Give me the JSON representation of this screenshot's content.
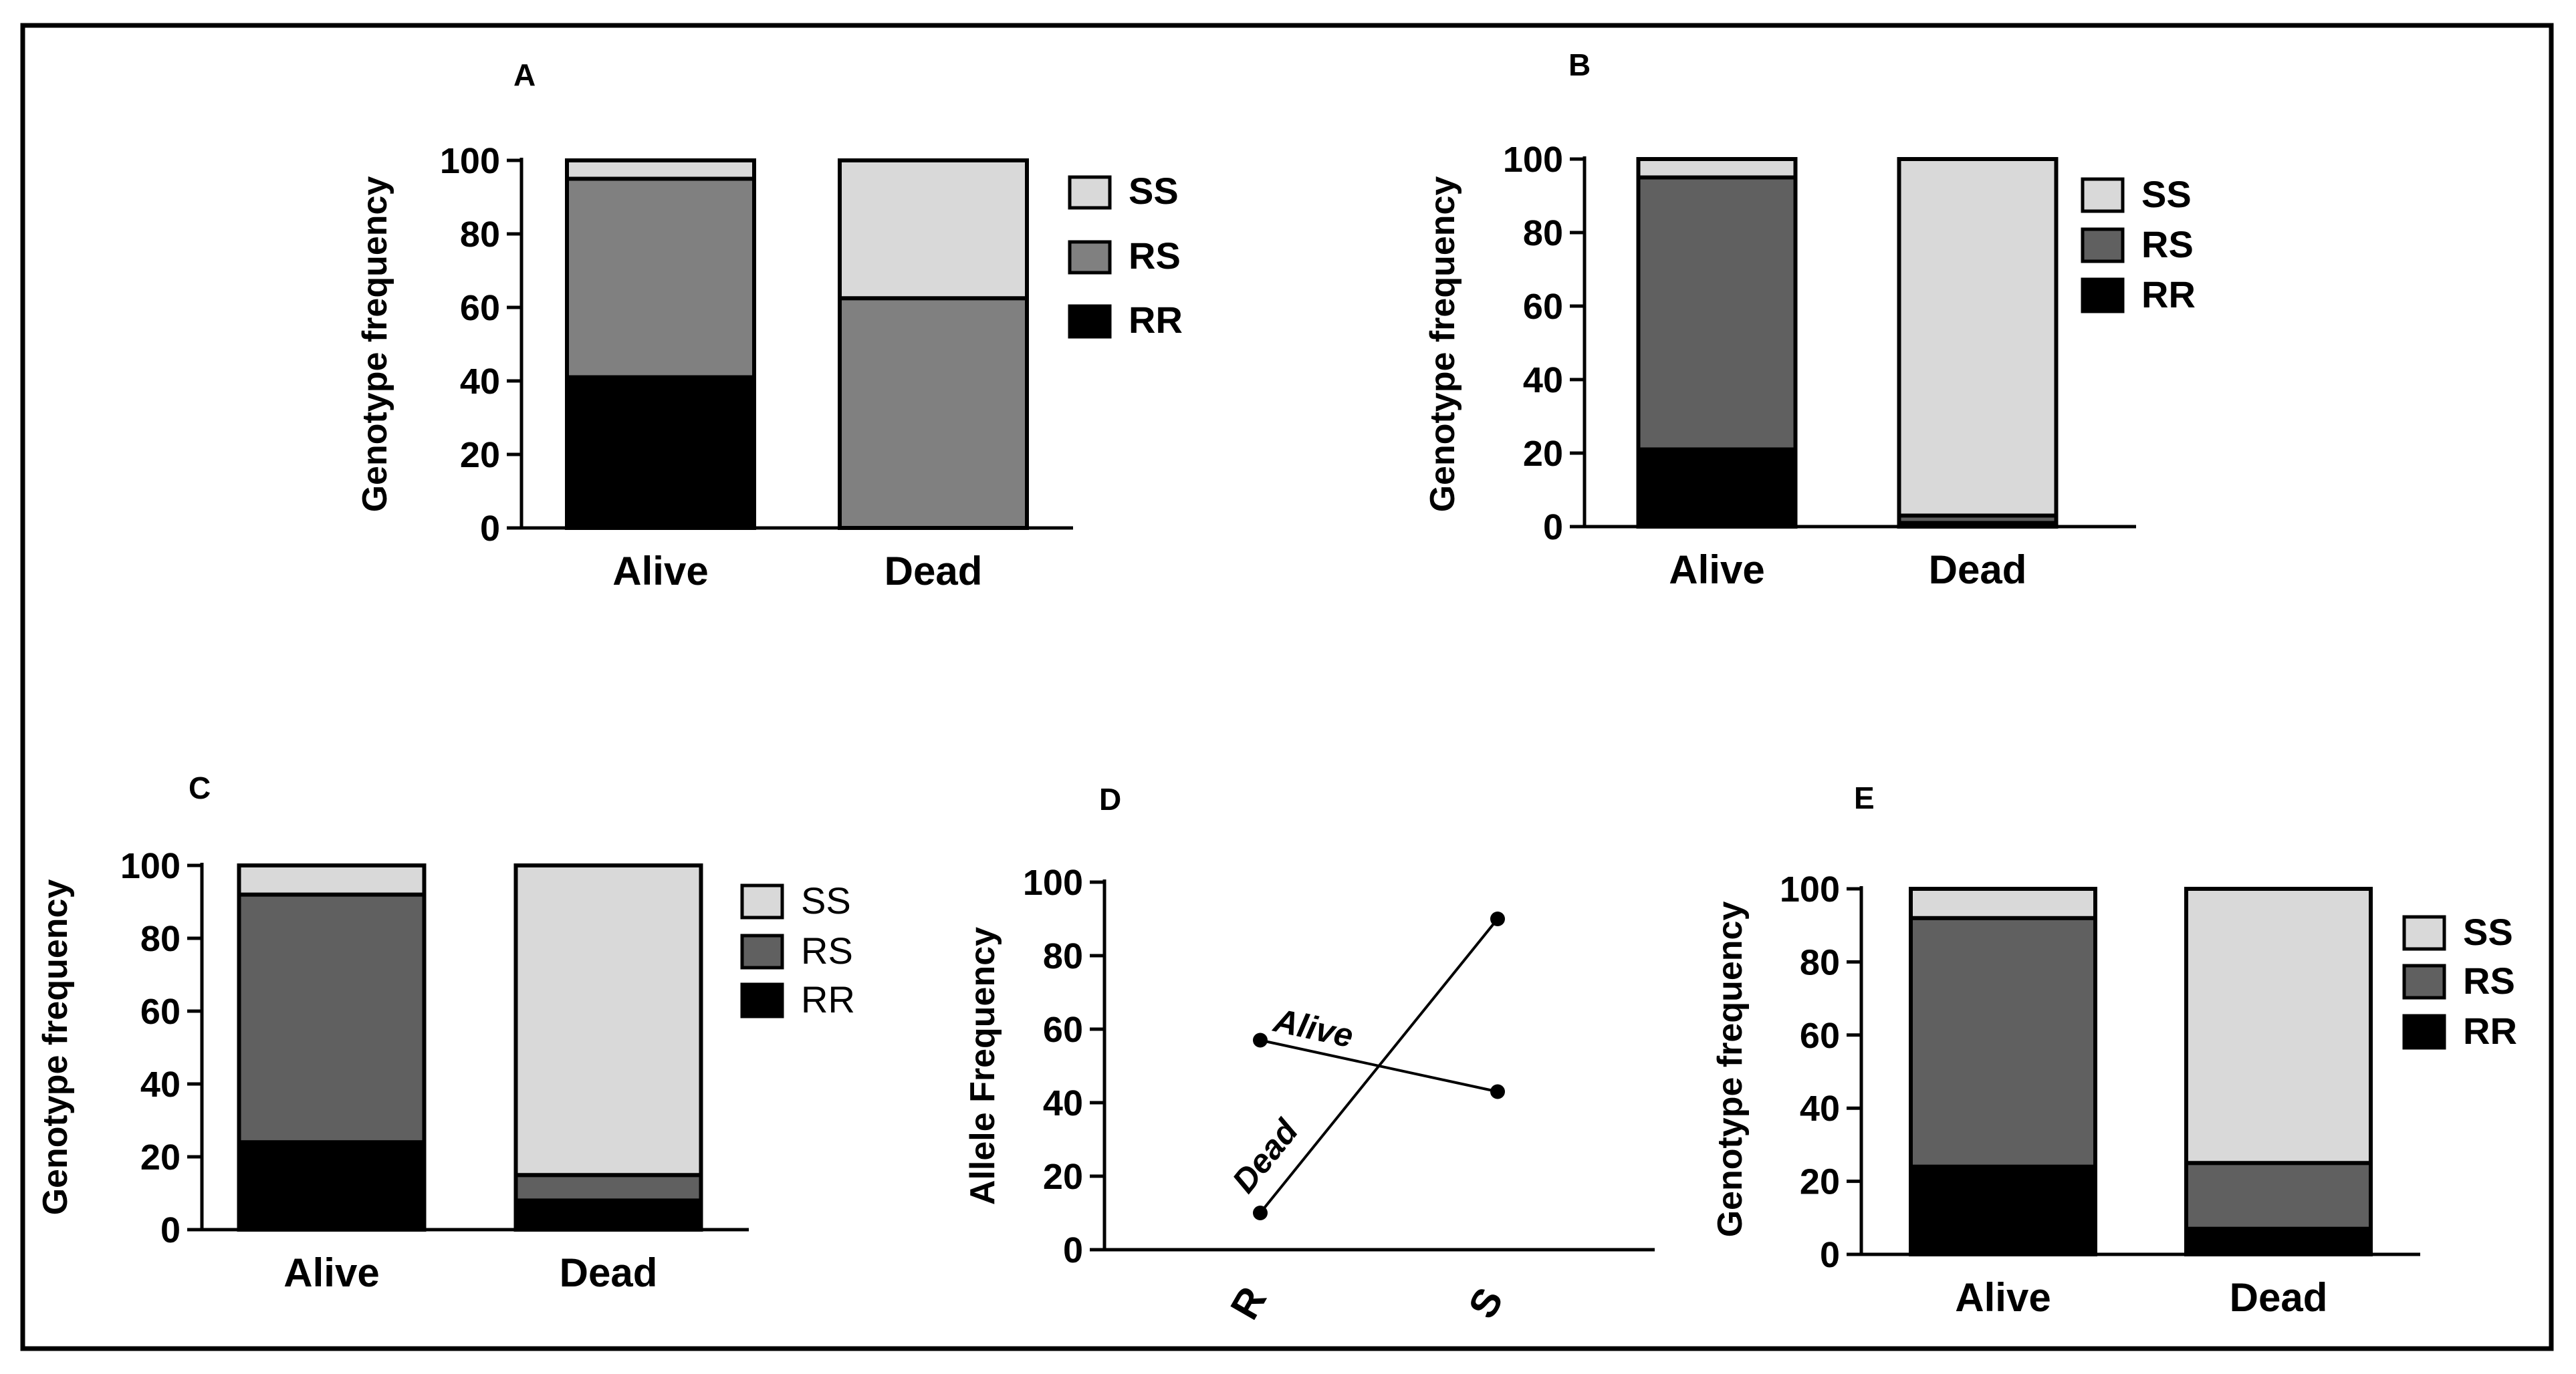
{
  "colors": {
    "SS": "#d9d9d9",
    "RS_light": "#808080",
    "RS_dark": "#606060",
    "RR": "#000000",
    "frame": "#000000"
  },
  "chart_data": [
    {
      "panel": "A",
      "type": "bar",
      "stacked": true,
      "categories": [
        "Alive",
        "Dead"
      ],
      "ylabel": "Genotype frequency",
      "ylim": [
        0,
        100
      ],
      "yticks": [
        "0",
        "20",
        "40",
        "60",
        "80",
        "100"
      ],
      "legend_style": "bold",
      "series": [
        {
          "name": "RR",
          "values": [
            41,
            0
          ]
        },
        {
          "name": "RS",
          "values": [
            54,
            62.5
          ]
        },
        {
          "name": "SS",
          "values": [
            5,
            37.5
          ]
        }
      ]
    },
    {
      "panel": "B",
      "type": "bar",
      "stacked": true,
      "categories": [
        "Alive",
        "Dead"
      ],
      "ylabel": "Genotype frequency",
      "ylim": [
        0,
        100
      ],
      "yticks": [
        "0",
        "20",
        "40",
        "60",
        "80",
        "100"
      ],
      "legend_style": "bold",
      "series": [
        {
          "name": "RR",
          "values": [
            21,
            1
          ]
        },
        {
          "name": "RS",
          "values": [
            74,
            2
          ]
        },
        {
          "name": "SS",
          "values": [
            5,
            97
          ]
        }
      ]
    },
    {
      "panel": "C",
      "type": "bar",
      "stacked": true,
      "categories": [
        "Alive",
        "Dead"
      ],
      "ylabel": "Genotype frequency",
      "ylim": [
        0,
        100
      ],
      "yticks": [
        "0",
        "20",
        "40",
        "60",
        "80",
        "100"
      ],
      "legend_style": "normal",
      "series": [
        {
          "name": "RR",
          "values": [
            24,
            8
          ]
        },
        {
          "name": "RS",
          "values": [
            68,
            7
          ]
        },
        {
          "name": "SS",
          "values": [
            8,
            85
          ]
        }
      ]
    },
    {
      "panel": "D",
      "type": "line",
      "categories": [
        "R",
        "S"
      ],
      "ylabel": "Allele Frequency",
      "ylim": [
        0,
        100
      ],
      "yticks": [
        "0",
        "20",
        "40",
        "60",
        "80",
        "100"
      ],
      "series": [
        {
          "name": "Alive",
          "values": [
            57,
            43
          ]
        },
        {
          "name": "Dead",
          "values": [
            10,
            90
          ]
        }
      ]
    },
    {
      "panel": "E",
      "type": "bar",
      "stacked": true,
      "categories": [
        "Alive",
        "Dead"
      ],
      "ylabel": "Genotype frequency",
      "ylim": [
        0,
        100
      ],
      "yticks": [
        "0",
        "20",
        "40",
        "60",
        "80",
        "100"
      ],
      "legend_style": "bold",
      "series": [
        {
          "name": "RR",
          "values": [
            24,
            7
          ]
        },
        {
          "name": "RS",
          "values": [
            68,
            18
          ]
        },
        {
          "name": "SS",
          "values": [
            8,
            75
          ]
        }
      ]
    }
  ]
}
